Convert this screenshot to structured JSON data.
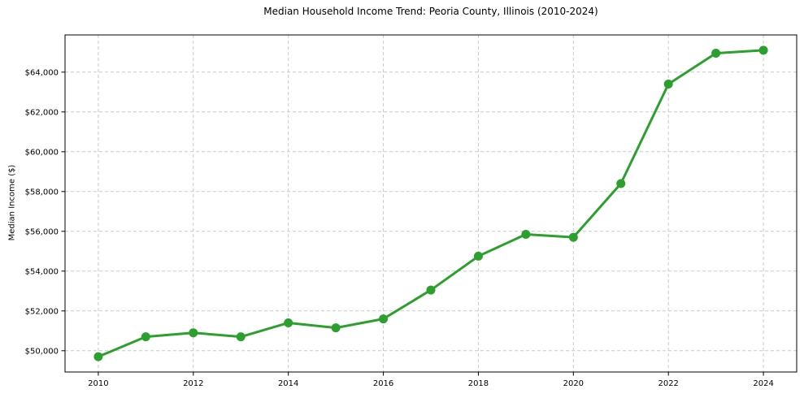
{
  "chart_data": {
    "type": "line",
    "title": "Median Household Income Trend: Peoria County, Illinois (2010-2024)",
    "xlabel": "",
    "ylabel": "Median Income ($)",
    "x": [
      2010,
      2011,
      2012,
      2013,
      2014,
      2015,
      2016,
      2017,
      2018,
      2019,
      2020,
      2021,
      2022,
      2023,
      2024
    ],
    "series": [
      {
        "name": "Median Household Income",
        "values": [
          49700,
          50700,
          50900,
          50700,
          51400,
          51150,
          51600,
          53050,
          54750,
          55850,
          55700,
          58400,
          63400,
          64950,
          65100
        ]
      }
    ],
    "xticks": [
      2010,
      2012,
      2014,
      2016,
      2018,
      2020,
      2022,
      2024
    ],
    "xtick_labels": [
      "2010",
      "2012",
      "2014",
      "2016",
      "2018",
      "2020",
      "2022",
      "2024"
    ],
    "yticks": [
      50000,
      52000,
      54000,
      56000,
      58000,
      60000,
      62000,
      64000
    ],
    "ytick_labels": [
      "$50,000",
      "$52,000",
      "$54,000",
      "$56,000",
      "$58,000",
      "$60,000",
      "$62,000",
      "$64,000"
    ],
    "xlim": [
      2009.3,
      2024.7
    ],
    "ylim": [
      48930,
      65870
    ],
    "grid": true,
    "legend": "none",
    "colors": {
      "line": "#2ca02c",
      "marker": "#2ca02c",
      "grid": "#c9c9c9",
      "spine": "#000000",
      "background": "#ffffff"
    },
    "marker_style": "circle",
    "line_width": 3,
    "marker_radius": 5.5
  }
}
